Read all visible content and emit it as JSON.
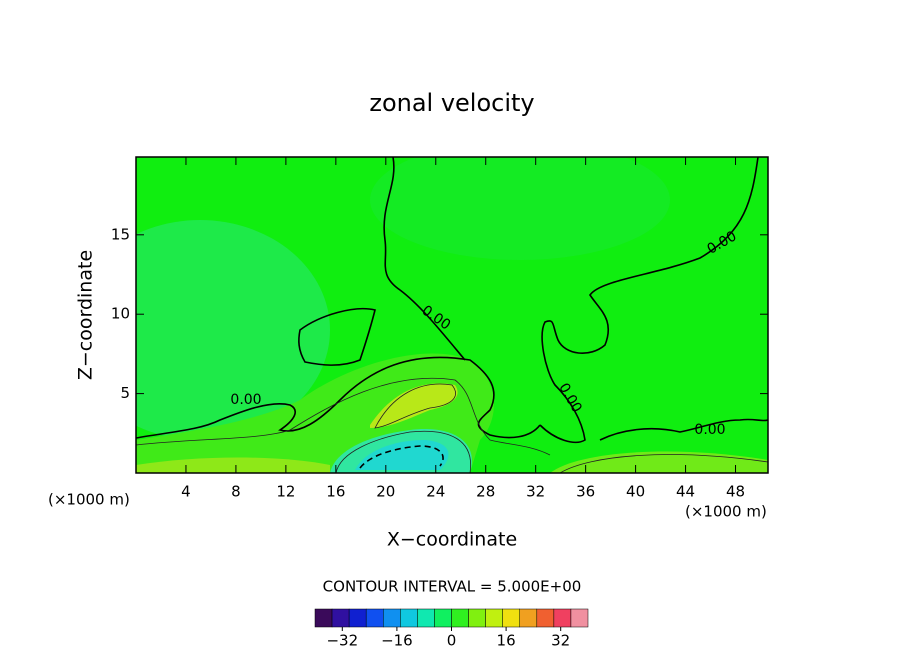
{
  "chart_data": {
    "type": "contour",
    "title": "zonal velocity",
    "x_label": "X−coordinate",
    "y_label": "Z−coordinate",
    "x_unit_label": "(×1000 m)",
    "y_unit_label": "(×1000 m)",
    "xlim": [
      0,
      50.6
    ],
    "xticks": [
      4,
      8,
      12,
      16,
      20,
      24,
      28,
      32,
      36,
      40,
      44,
      48
    ],
    "ylim": [
      0,
      19.9
    ],
    "yticks": [
      5,
      10,
      15
    ],
    "contour_labels": [
      "0.00",
      "0.00",
      "0.00",
      "0.00",
      "0.00"
    ],
    "contour_interval_label": "CONTOUR INTERVAL = 5.000E+00",
    "colorbar": {
      "lim": [
        -40,
        40
      ],
      "ticks": [
        {
          "value": -32,
          "label": "−32"
        },
        {
          "value": -16,
          "label": "−16"
        },
        0,
        16,
        32
      ],
      "colors": [
        "#3a0a5a",
        "#3010a0",
        "#1020d0",
        "#1050f0",
        "#1090f0",
        "#10c8e0",
        "#10e8b0",
        "#10f060",
        "#30f020",
        "#80f010",
        "#c0f010",
        "#f0e010",
        "#f0a020",
        "#f06030",
        "#f04060",
        "#f090a0"
      ]
    }
  }
}
